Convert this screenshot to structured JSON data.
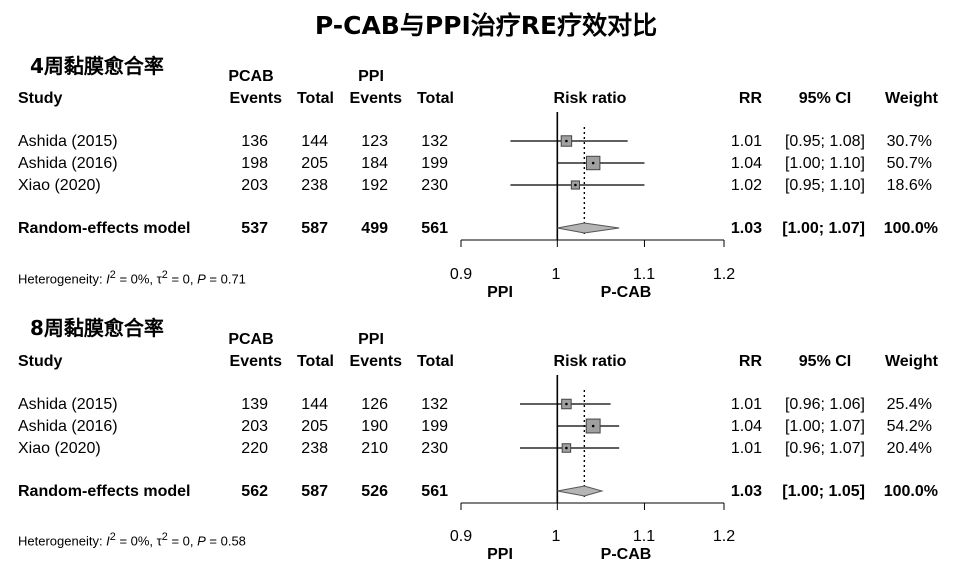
{
  "title": "P-CAB与PPI治疗RE疗效对比",
  "headers": {
    "study": "Study",
    "group1": "PCAB",
    "group2": "PPI",
    "events": "Events",
    "total": "Total",
    "risk_ratio": "Risk ratio",
    "rr": "RR",
    "ci": "95% CI",
    "weight": "Weight"
  },
  "chart_data": [
    {
      "type": "forest",
      "section_title": "4周黏膜愈合率",
      "xscale": "log",
      "xlim": [
        0.9,
        1.2
      ],
      "ticks": [
        0.9,
        1,
        1.1,
        1.2
      ],
      "tick_labels": [
        "0.9",
        "1",
        "1.1",
        "1.2"
      ],
      "left_label": "PPI",
      "right_label": "P-CAB",
      "rows": [
        {
          "study": "Ashida (2015)",
          "e1": "136",
          "n1": "144",
          "e2": "123",
          "n2": "132",
          "rr": 1.01,
          "lo": 0.95,
          "hi": 1.08,
          "rr_text": "1.01",
          "ci_text": "[0.95; 1.08]",
          "weight_text": "30.7%",
          "weight": 30.7
        },
        {
          "study": "Ashida (2016)",
          "e1": "198",
          "n1": "205",
          "e2": "184",
          "n2": "199",
          "rr": 1.04,
          "lo": 1.0,
          "hi": 1.1,
          "rr_text": "1.04",
          "ci_text": "[1.00; 1.10]",
          "weight_text": "50.7%",
          "weight": 50.7
        },
        {
          "study": "Xiao (2020)",
          "e1": "203",
          "n1": "238",
          "e2": "192",
          "n2": "230",
          "rr": 1.02,
          "lo": 0.95,
          "hi": 1.1,
          "rr_text": "1.02",
          "ci_text": "[0.95; 1.10]",
          "weight_text": "18.6%",
          "weight": 18.6
        }
      ],
      "model": {
        "label": "Random-effects model",
        "e1": "537",
        "n1": "587",
        "e2": "499",
        "n2": "561",
        "rr": 1.03,
        "lo": 1.0,
        "hi": 1.07,
        "rr_text": "1.03",
        "ci_text": "[1.00; 1.07]",
        "weight_text": "100.0%"
      },
      "heterogeneity": {
        "prefix": "Heterogeneity: ",
        "i2_sym": "I",
        "i2": " = 0%, ",
        "tau_sym": "τ",
        "tau": " = 0, ",
        "p_sym": "P",
        "p": " = 0.71"
      }
    },
    {
      "type": "forest",
      "section_title": "8周黏膜愈合率",
      "xscale": "log",
      "xlim": [
        0.9,
        1.2
      ],
      "ticks": [
        0.9,
        1,
        1.1,
        1.2
      ],
      "tick_labels": [
        "0.9",
        "1",
        "1.1",
        "1.2"
      ],
      "left_label": "PPI",
      "right_label": "P-CAB",
      "rows": [
        {
          "study": "Ashida (2015)",
          "e1": "139",
          "n1": "144",
          "e2": "126",
          "n2": "132",
          "rr": 1.01,
          "lo": 0.96,
          "hi": 1.06,
          "rr_text": "1.01",
          "ci_text": "[0.96; 1.06]",
          "weight_text": "25.4%",
          "weight": 25.4
        },
        {
          "study": "Ashida (2016)",
          "e1": "203",
          "n1": "205",
          "e2": "190",
          "n2": "199",
          "rr": 1.04,
          "lo": 1.0,
          "hi": 1.07,
          "rr_text": "1.04",
          "ci_text": "[1.00; 1.07]",
          "weight_text": "54.2%",
          "weight": 54.2
        },
        {
          "study": "Xiao (2020)",
          "e1": "220",
          "n1": "238",
          "e2": "210",
          "n2": "230",
          "rr": 1.01,
          "lo": 0.96,
          "hi": 1.07,
          "rr_text": "1.01",
          "ci_text": "[0.96; 1.07]",
          "weight_text": "20.4%",
          "weight": 20.4
        }
      ],
      "model": {
        "label": "Random-effects model",
        "e1": "562",
        "n1": "587",
        "e2": "526",
        "n2": "561",
        "rr": 1.03,
        "lo": 1.0,
        "hi": 1.05,
        "rr_text": "1.03",
        "ci_text": "[1.00; 1.05]",
        "weight_text": "100.0%"
      },
      "heterogeneity": {
        "prefix": "Heterogeneity: ",
        "i2_sym": "I",
        "i2": " = 0%, ",
        "tau_sym": "τ",
        "tau": " = 0, ",
        "p_sym": "P",
        "p": " = 0.58"
      }
    }
  ]
}
